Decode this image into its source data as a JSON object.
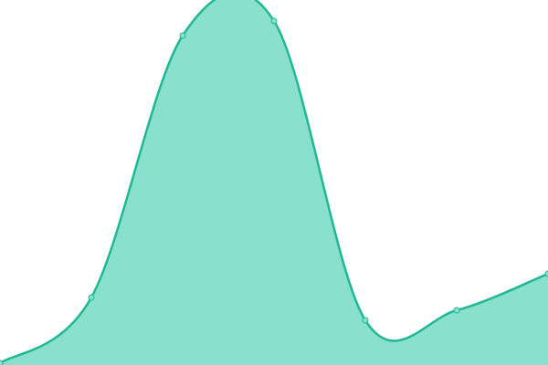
{
  "chart_data": {
    "type": "area",
    "categories": [
      null,
      null,
      null,
      null,
      null,
      null,
      null
    ],
    "values": [
      2,
      74,
      361,
      377,
      49,
      60,
      100
    ],
    "ylim": [
      0,
      400
    ],
    "color": "#1fb794",
    "fill_color": "#88e0cd",
    "markers": true
  }
}
